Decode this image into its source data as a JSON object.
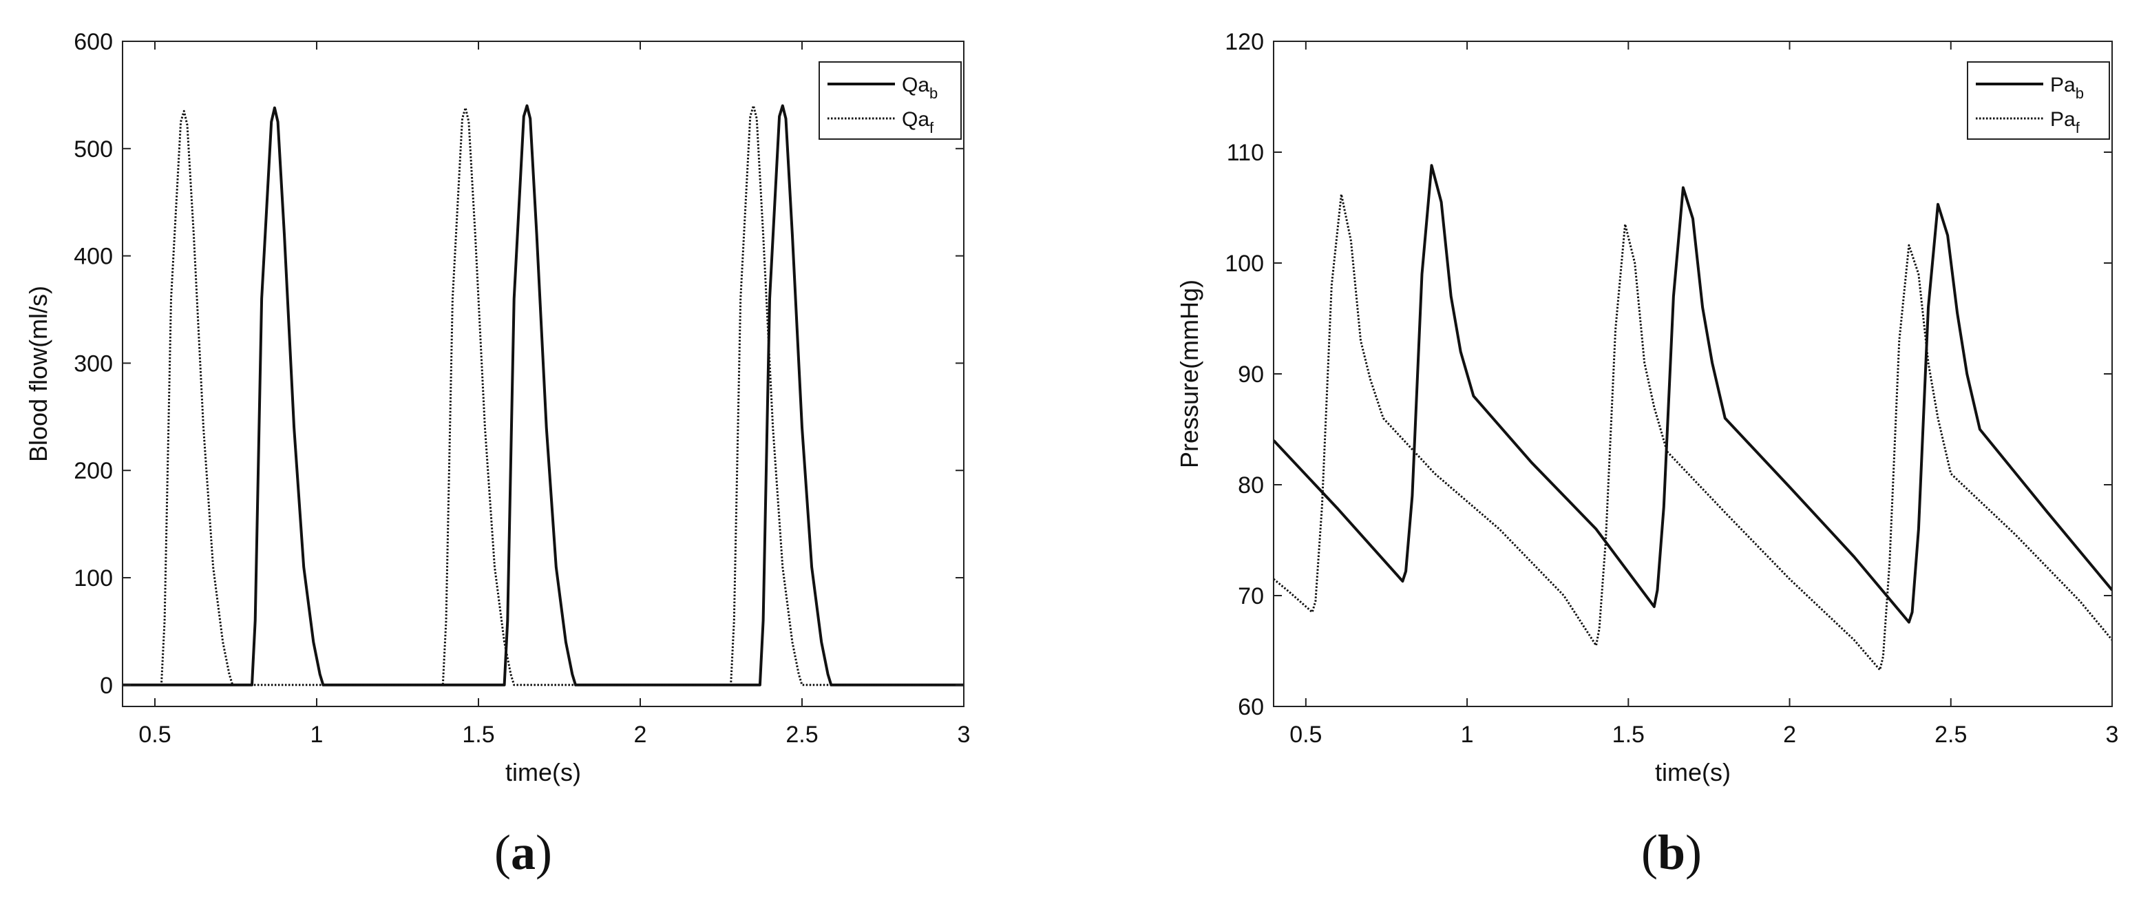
{
  "chart_data": [
    {
      "id": "a",
      "type": "line",
      "caption": "a",
      "xlabel": "time(s)",
      "ylabel": "Blood flow(ml/s)",
      "xlim": [
        0.4,
        3.0
      ],
      "ylim": [
        -20,
        600
      ],
      "xticks": [
        0.5,
        1,
        1.5,
        2,
        2.5,
        3
      ],
      "xtick_labels": [
        "0.5",
        "1",
        "1.5",
        "2",
        "2.5",
        "3"
      ],
      "yticks": [
        0,
        100,
        200,
        300,
        400,
        500,
        600
      ],
      "ytick_labels": [
        "0",
        "100",
        "200",
        "300",
        "400",
        "500",
        "600"
      ],
      "legend_position": "top-right",
      "series": [
        {
          "name": "Qab",
          "legend_main": "Qa",
          "legend_sub": "b",
          "style": "solid",
          "x": [
            0.4,
            0.8,
            0.81,
            0.83,
            0.86,
            0.87,
            0.88,
            0.9,
            0.93,
            0.96,
            0.99,
            1.01,
            1.02,
            1.58,
            1.59,
            1.61,
            1.64,
            1.65,
            1.66,
            1.68,
            1.71,
            1.74,
            1.77,
            1.79,
            1.8,
            2.37,
            2.38,
            2.4,
            2.43,
            2.44,
            2.45,
            2.47,
            2.5,
            2.53,
            2.56,
            2.58,
            2.59,
            3.0
          ],
          "y": [
            0,
            0,
            60,
            360,
            525,
            538,
            525,
            420,
            240,
            110,
            40,
            10,
            0,
            0,
            60,
            360,
            530,
            540,
            528,
            420,
            240,
            110,
            40,
            10,
            0,
            0,
            60,
            360,
            530,
            540,
            528,
            420,
            240,
            110,
            40,
            10,
            0,
            0
          ]
        },
        {
          "name": "Qaf",
          "legend_main": "Qa",
          "legend_sub": "f",
          "style": "dotted",
          "x": [
            0.4,
            0.52,
            0.53,
            0.55,
            0.58,
            0.59,
            0.6,
            0.62,
            0.65,
            0.68,
            0.71,
            0.73,
            0.74,
            1.39,
            1.4,
            1.42,
            1.45,
            1.46,
            1.47,
            1.49,
            1.52,
            1.55,
            1.58,
            1.6,
            1.61,
            2.28,
            2.29,
            2.31,
            2.34,
            2.35,
            2.36,
            2.38,
            2.41,
            2.44,
            2.47,
            2.49,
            2.5,
            3.0
          ],
          "y": [
            0,
            0,
            60,
            360,
            525,
            535,
            522,
            420,
            240,
            110,
            40,
            10,
            0,
            0,
            60,
            360,
            528,
            538,
            525,
            420,
            240,
            110,
            40,
            10,
            0,
            0,
            60,
            360,
            530,
            540,
            528,
            420,
            240,
            110,
            40,
            10,
            0,
            0
          ]
        }
      ]
    },
    {
      "id": "b",
      "type": "line",
      "caption": "b",
      "xlabel": "time(s)",
      "ylabel": "Pressure(mmHg)",
      "xlim": [
        0.4,
        3.0
      ],
      "ylim": [
        60,
        120
      ],
      "xticks": [
        0.5,
        1,
        1.5,
        2,
        2.5,
        3
      ],
      "xtick_labels": [
        "0.5",
        "1",
        "1.5",
        "2",
        "2.5",
        "3"
      ],
      "yticks": [
        60,
        70,
        80,
        90,
        100,
        110,
        120
      ],
      "ytick_labels": [
        "60",
        "70",
        "80",
        "90",
        "100",
        "110",
        "120"
      ],
      "legend_position": "top-right",
      "series": [
        {
          "name": "Pab",
          "legend_main": "Pa",
          "legend_sub": "b",
          "style": "solid",
          "x": [
            0.4,
            0.6,
            0.8,
            0.81,
            0.83,
            0.86,
            0.89,
            0.92,
            0.95,
            0.98,
            1.02,
            1.2,
            1.4,
            1.58,
            1.59,
            1.61,
            1.64,
            1.67,
            1.7,
            1.73,
            1.76,
            1.8,
            2.0,
            2.2,
            2.37,
            2.38,
            2.4,
            2.43,
            2.46,
            2.49,
            2.52,
            2.55,
            2.59,
            2.8,
            3.0
          ],
          "y": [
            84,
            77.8,
            71.3,
            72.2,
            79,
            99,
            108.8,
            105.5,
            97,
            92,
            88,
            82,
            76,
            69,
            70.5,
            78,
            97,
            106.8,
            104,
            96,
            91,
            86,
            79.8,
            73.5,
            67.6,
            68.5,
            76,
            96,
            105.3,
            102.5,
            95.5,
            90,
            85,
            77.5,
            70.5
          ]
        },
        {
          "name": "Paf",
          "legend_main": "Pa",
          "legend_sub": "f",
          "style": "dotted",
          "x": [
            0.4,
            0.45,
            0.52,
            0.53,
            0.55,
            0.58,
            0.61,
            0.64,
            0.67,
            0.7,
            0.74,
            0.9,
            1.1,
            1.3,
            1.4,
            1.41,
            1.43,
            1.46,
            1.49,
            1.52,
            1.55,
            1.58,
            1.62,
            1.8,
            2.0,
            2.2,
            2.28,
            2.29,
            2.31,
            2.34,
            2.37,
            2.4,
            2.43,
            2.46,
            2.5,
            2.7,
            2.9,
            3.0
          ],
          "y": [
            71.5,
            70.3,
            68.5,
            69.5,
            78,
            98,
            106.2,
            102,
            93,
            89.5,
            86,
            81,
            76,
            70,
            65.5,
            67,
            75,
            94,
            103.5,
            100,
            91,
            87,
            83,
            77.5,
            71.5,
            66,
            63.3,
            64.5,
            73,
            93,
            101.6,
            99,
            91,
            86,
            81,
            75.5,
            69.5,
            66
          ]
        }
      ]
    }
  ]
}
